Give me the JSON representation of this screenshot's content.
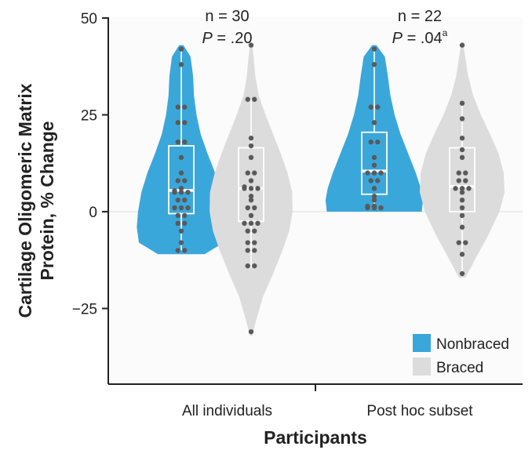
{
  "chart_data": {
    "type": "violin",
    "title": "",
    "xlabel": "Participants",
    "ylabel_lines": [
      "Cartilage Oligomeric Matrix",
      "Protein, % Change"
    ],
    "ylim": [
      -40,
      50
    ],
    "yticks": [
      50,
      25,
      0,
      -25
    ],
    "ytick_labels": [
      "50",
      "25",
      "0",
      "−25"
    ],
    "categories": [
      "All individuals",
      "Post hoc subset"
    ],
    "annotations": [
      {
        "n_label": "n = 30",
        "p_prefix": "P",
        "p_value": " = .20",
        "sup": ""
      },
      {
        "n_label": "n = 22",
        "p_prefix": "P",
        "p_value": " = .04",
        "sup": "a"
      }
    ],
    "legend": {
      "position": "bottom-right",
      "entries": [
        {
          "name": "Nonbraced",
          "color": "#3AA7DB"
        },
        {
          "name": "Braced",
          "color": "#DCDCDC"
        }
      ]
    },
    "series": [
      {
        "name": "Nonbraced",
        "color": "#3AA7DB",
        "groups": [
          {
            "category": "All individuals",
            "box": {
              "q1": -0.5,
              "median": 5.5,
              "q3": 17,
              "whisker_low": -10,
              "whisker_high": 42
            },
            "points": [
              42,
              38,
              27,
              27,
              23,
              23,
              18,
              18,
              14,
              10,
              8,
              8,
              6,
              5,
              5,
              5,
              5,
              3,
              3,
              1,
              1,
              1,
              -1,
              -1,
              -3,
              -3,
              -5,
              -8,
              -10,
              -10
            ],
            "violin": [
              [
                -11,
                0.55
              ],
              [
                -8,
                1.0
              ],
              [
                -4,
                1.05
              ],
              [
                0,
                1.02
              ],
              [
                5,
                0.94
              ],
              [
                10,
                0.8
              ],
              [
                15,
                0.62
              ],
              [
                20,
                0.46
              ],
              [
                25,
                0.36
              ],
              [
                30,
                0.3
              ],
              [
                35,
                0.28
              ],
              [
                40,
                0.22
              ],
              [
                43,
                0.05
              ]
            ]
          },
          {
            "category": "Post hoc subset",
            "box": {
              "q1": 4.5,
              "median": 10.5,
              "q3": 20.5,
              "whisker_low": 0.5,
              "whisker_high": 42
            },
            "points": [
              42,
              38,
              27,
              27,
              23,
              18,
              18,
              14,
              12,
              10,
              10,
              10,
              8,
              8,
              6,
              4,
              3,
              1,
              1,
              1,
              1,
              1
            ],
            "violin": [
              [
                0,
                1.12
              ],
              [
                3,
                1.15
              ],
              [
                6,
                1.1
              ],
              [
                10,
                0.98
              ],
              [
                15,
                0.8
              ],
              [
                20,
                0.62
              ],
              [
                25,
                0.48
              ],
              [
                30,
                0.38
              ],
              [
                35,
                0.32
              ],
              [
                40,
                0.25
              ],
              [
                43,
                0.05
              ]
            ]
          }
        ]
      },
      {
        "name": "Braced",
        "color": "#DCDCDC",
        "groups": [
          {
            "category": "All individuals",
            "box": {
              "q1": -2.5,
              "median": 6,
              "q3": 16.5,
              "whisker_low": -14.5,
              "whisker_high": 29
            },
            "points": [
              43,
              29,
              29,
              19,
              17,
              14,
              10,
              10,
              8,
              6,
              6,
              6,
              6,
              4,
              3,
              1,
              1,
              -1,
              -3,
              -3,
              -3,
              -5,
              -5,
              -8,
              -8,
              -10,
              -10,
              -14,
              -14,
              -31
            ],
            "violin": [
              [
                -32,
                0.03
              ],
              [
                -28,
                0.12
              ],
              [
                -22,
                0.28
              ],
              [
                -16,
                0.52
              ],
              [
                -10,
                0.74
              ],
              [
                -5,
                0.9
              ],
              [
                0,
                0.98
              ],
              [
                5,
                0.97
              ],
              [
                10,
                0.86
              ],
              [
                15,
                0.7
              ],
              [
                20,
                0.52
              ],
              [
                25,
                0.34
              ],
              [
                30,
                0.18
              ],
              [
                35,
                0.1
              ],
              [
                40,
                0.06
              ],
              [
                43.5,
                0.02
              ]
            ]
          },
          {
            "category": "Post hoc subset",
            "box": {
              "q1": 0,
              "median": 6.5,
              "q3": 16.5,
              "whisker_low": -15.5,
              "whisker_high": 28
            },
            "points": [
              43,
              28,
              24,
              19,
              16,
              14,
              10,
              10,
              8,
              8,
              6,
              6,
              6,
              5,
              3,
              1,
              -1,
              -4,
              -8,
              -8,
              -11,
              -16
            ],
            "violin": [
              [
                -17,
                0.08
              ],
              [
                -12,
                0.32
              ],
              [
                -6,
                0.62
              ],
              [
                0,
                0.88
              ],
              [
                5,
                1.0
              ],
              [
                10,
                0.98
              ],
              [
                15,
                0.86
              ],
              [
                20,
                0.66
              ],
              [
                25,
                0.44
              ],
              [
                30,
                0.26
              ],
              [
                35,
                0.14
              ],
              [
                40,
                0.07
              ],
              [
                43.5,
                0.02
              ]
            ]
          }
        ]
      }
    ]
  }
}
